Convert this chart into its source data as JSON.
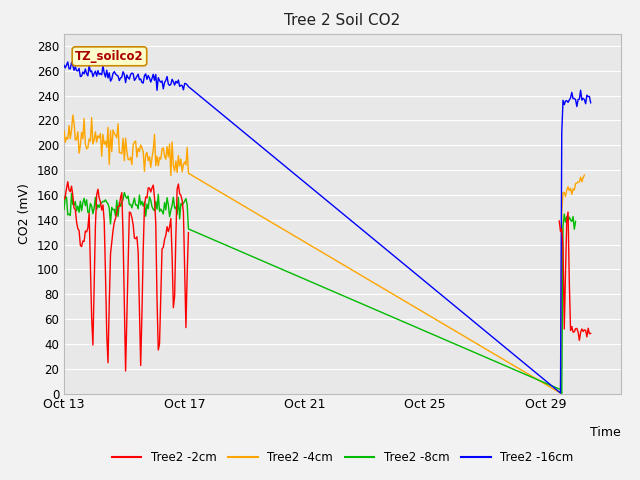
{
  "title": "Tree 2 Soil CO2",
  "xlabel": "Time",
  "ylabel": "CO2 (mV)",
  "ylim": [
    0,
    290
  ],
  "yticks": [
    0,
    20,
    40,
    60,
    80,
    100,
    120,
    140,
    160,
    180,
    200,
    220,
    240,
    260,
    280
  ],
  "xtick_labels": [
    "Oct 13",
    "Oct 17",
    "Oct 21",
    "Oct 25",
    "Oct 29"
  ],
  "xtick_days": [
    0,
    4,
    8,
    12,
    16
  ],
  "colors": {
    "red": "#FF0000",
    "orange": "#FFA500",
    "green": "#00BB00",
    "blue": "#0000FF"
  },
  "legend_labels": [
    "Tree2 -2cm",
    "Tree2 -4cm",
    "Tree2 -8cm",
    "Tree2 -16cm"
  ],
  "annotation_text": "TZ_soilco2",
  "annotation_box_facecolor": "#FFFFCC",
  "annotation_box_edgecolor": "#CC8800",
  "plot_bg": "#E8E8E8",
  "fig_bg": "#F2F2F2",
  "grid_color": "#FFFFFF",
  "xlim": [
    0,
    18.5
  ]
}
